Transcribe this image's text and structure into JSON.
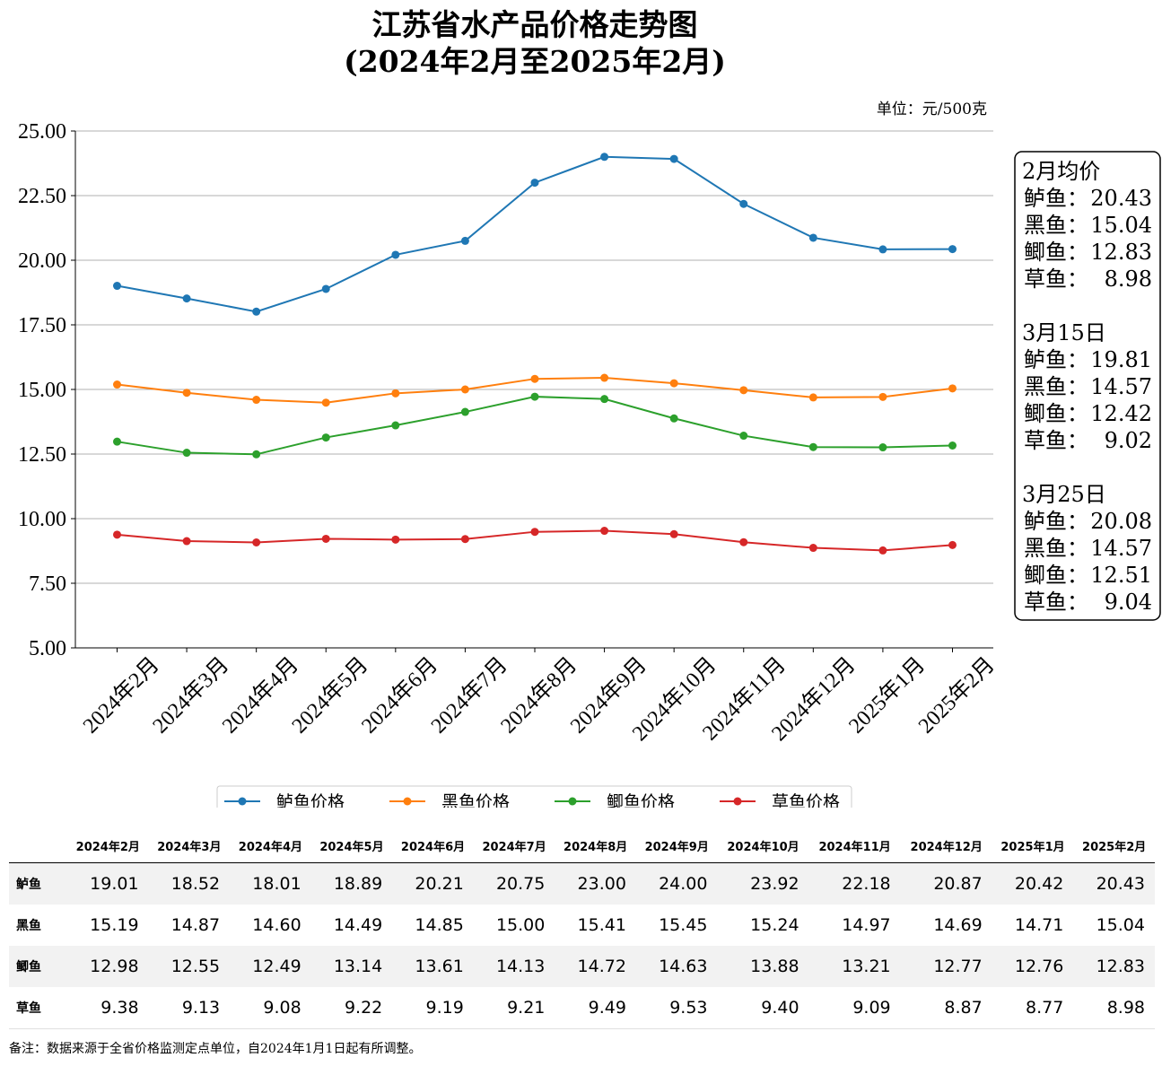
{
  "title": {
    "line1": "江苏省水产品价格走势图",
    "line2": "(2024年2月至2025年2月)"
  },
  "unit_label": "单位：元/500克",
  "info_box": {
    "sections": [
      {
        "heading": "2月均价",
        "rows": [
          {
            "name": "鲈鱼：",
            "value": "20.43"
          },
          {
            "name": "黑鱼：",
            "value": "15.04"
          },
          {
            "name": "鲫鱼：",
            "value": "12.83"
          },
          {
            "name": "草鱼：",
            "value": "8.98"
          }
        ]
      },
      {
        "heading": "3月15日",
        "rows": [
          {
            "name": "鲈鱼：",
            "value": "19.81"
          },
          {
            "name": "黑鱼：",
            "value": "14.57"
          },
          {
            "name": "鲫鱼：",
            "value": "12.42"
          },
          {
            "name": "草鱼：",
            "value": "9.02"
          }
        ]
      },
      {
        "heading": "3月25日",
        "rows": [
          {
            "name": "鲈鱼：",
            "value": "20.08"
          },
          {
            "name": "黑鱼：",
            "value": "14.57"
          },
          {
            "name": "鲫鱼：",
            "value": "12.51"
          },
          {
            "name": "草鱼：",
            "value": "9.04"
          }
        ]
      }
    ]
  },
  "note": "备注：数据来源于全省价格监测定点单位，自2024年1月1日起有所调整。",
  "table": {
    "headers": [
      "2024年2月",
      "2024年3月",
      "2024年4月",
      "2024年5月",
      "2024年6月",
      "2024年7月",
      "2024年8月",
      "2024年9月",
      "2024年10月",
      "2024年11月",
      "2024年12月",
      "2025年1月",
      "2025年2月"
    ],
    "rows": [
      {
        "label": "鲈鱼",
        "cells": [
          "19.01",
          "18.52",
          "18.01",
          "18.89",
          "20.21",
          "20.75",
          "23.00",
          "24.00",
          "23.92",
          "22.18",
          "20.87",
          "20.42",
          "20.43"
        ]
      },
      {
        "label": "黑鱼",
        "cells": [
          "15.19",
          "14.87",
          "14.60",
          "14.49",
          "14.85",
          "15.00",
          "15.41",
          "15.45",
          "15.24",
          "14.97",
          "14.69",
          "14.71",
          "15.04"
        ]
      },
      {
        "label": "鲫鱼",
        "cells": [
          "12.98",
          "12.55",
          "12.49",
          "13.14",
          "13.61",
          "14.13",
          "14.72",
          "14.63",
          "13.88",
          "13.21",
          "12.77",
          "12.76",
          "12.83"
        ]
      },
      {
        "label": "草鱼",
        "cells": [
          "9.38",
          "9.13",
          "9.08",
          "9.22",
          "9.19",
          "9.21",
          "9.49",
          "9.53",
          "9.40",
          "9.09",
          "8.87",
          "8.77",
          "8.98"
        ]
      }
    ]
  },
  "chart_data": {
    "type": "line",
    "title": "江苏省水产品价格走势图 (2024年2月至2025年2月)",
    "xlabel": "",
    "ylabel": "",
    "categories": [
      "2024年2月",
      "2024年3月",
      "2024年4月",
      "2024年5月",
      "2024年6月",
      "2024年7月",
      "2024年8月",
      "2024年9月",
      "2024年10月",
      "2024年11月",
      "2024年12月",
      "2025年1月",
      "2025年2月"
    ],
    "ylim": [
      5,
      25
    ],
    "yticks": [
      "5.00",
      "7.50",
      "10.00",
      "12.50",
      "15.00",
      "17.50",
      "20.00",
      "22.50",
      "25.00"
    ],
    "grid": "horizontal",
    "legend_position": "bottom-center",
    "series": [
      {
        "name": "鲈鱼价格",
        "color": "#1f77b4",
        "values": [
          19.01,
          18.52,
          18.01,
          18.89,
          20.21,
          20.75,
          23.0,
          24.0,
          23.92,
          22.18,
          20.87,
          20.42,
          20.43
        ]
      },
      {
        "name": "黑鱼价格",
        "color": "#ff7f0e",
        "values": [
          15.19,
          14.87,
          14.6,
          14.49,
          14.85,
          15.0,
          15.41,
          15.45,
          15.24,
          14.97,
          14.69,
          14.71,
          15.04
        ]
      },
      {
        "name": "鲫鱼价格",
        "color": "#2ca02c",
        "values": [
          12.98,
          12.55,
          12.49,
          13.14,
          13.61,
          14.13,
          14.72,
          14.63,
          13.88,
          13.21,
          12.77,
          12.76,
          12.83
        ]
      },
      {
        "name": "草鱼价格",
        "color": "#d62728",
        "values": [
          9.38,
          9.13,
          9.08,
          9.22,
          9.19,
          9.21,
          9.49,
          9.53,
          9.4,
          9.09,
          8.87,
          8.77,
          8.98
        ]
      }
    ]
  }
}
